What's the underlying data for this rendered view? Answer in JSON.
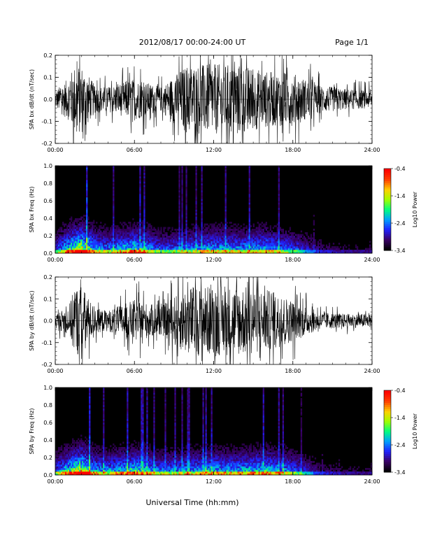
{
  "header": {
    "title": "2012/08/17  00:00-24:00 UT",
    "page": "Page 1/1"
  },
  "x_axis": {
    "title": "Universal Time (hh:mm)",
    "ticks": [
      "00:00",
      "06:00",
      "12:00",
      "18:00",
      "24:00"
    ],
    "range_hours": [
      0,
      24
    ]
  },
  "colorbar": {
    "label": "Log10 Power",
    "ticks": [
      "-0.4",
      "-1.4",
      "-2.4",
      "-3.4"
    ],
    "range": [
      -3.4,
      -0.4
    ],
    "colors": [
      "#000000",
      "#3a0066",
      "#2020ff",
      "#00a0ff",
      "#00ff80",
      "#a0ff00",
      "#ffd000",
      "#ff4000",
      "#ff0000"
    ]
  },
  "chart_data": [
    {
      "type": "line",
      "ylabel": "SPA bx dB/dt (nT/sec)",
      "ylim": [
        -0.2,
        0.2
      ],
      "yticks": [
        "-0.2",
        "-0.1",
        "0.0",
        "0.1",
        "0.2"
      ],
      "series": [
        {
          "x": [
            0,
            1,
            1.5,
            2,
            3,
            4,
            6,
            8,
            10,
            12,
            14,
            16,
            18,
            20,
            22,
            24
          ],
          "values": [
            0.05,
            0.12,
            0.2,
            0.2,
            0.08,
            0.07,
            0.12,
            0.07,
            0.2,
            0.2,
            0.2,
            0.16,
            0.15,
            0.08,
            0.06,
            0.05
          ]
        }
      ]
    },
    {
      "type": "heatmap",
      "ylabel": "SPA bx Freq (Hz)",
      "ylim": [
        0.0,
        1.0
      ],
      "yticks": [
        "0.0",
        "0.2",
        "0.4",
        "0.6",
        "0.8",
        "1.0"
      ],
      "activity": {
        "x": [
          0,
          1,
          2,
          3,
          4,
          6,
          8,
          10,
          12,
          14,
          16,
          18,
          20,
          22,
          24
        ],
        "values": [
          0.3,
          0.6,
          0.9,
          0.5,
          0.4,
          0.6,
          0.35,
          0.4,
          0.5,
          0.45,
          0.5,
          0.35,
          0.15,
          0.1,
          0.1
        ]
      }
    },
    {
      "type": "line",
      "ylabel": "SPA by dB/dt (nT/sec)",
      "ylim": [
        -0.2,
        0.2
      ],
      "yticks": [
        "-0.2",
        "-0.1",
        "0.0",
        "0.1",
        "0.2"
      ],
      "series": [
        {
          "x": [
            0,
            1,
            1.5,
            2,
            3,
            4,
            6,
            8,
            10,
            12,
            14,
            16,
            18,
            20,
            22,
            24
          ],
          "values": [
            0.04,
            0.08,
            0.2,
            0.2,
            0.07,
            0.06,
            0.12,
            0.08,
            0.2,
            0.2,
            0.2,
            0.18,
            0.12,
            0.05,
            0.04,
            0.04
          ]
        }
      ]
    },
    {
      "type": "heatmap",
      "ylabel": "SPA by Freq (Hz)",
      "ylim": [
        0.0,
        1.0
      ],
      "yticks": [
        "0.0",
        "0.2",
        "0.4",
        "0.6",
        "0.8",
        "1.0"
      ],
      "activity": {
        "x": [
          0,
          1,
          2,
          3,
          4,
          6,
          8,
          10,
          12,
          14,
          16,
          18,
          20,
          22,
          24
        ],
        "values": [
          0.35,
          0.6,
          0.9,
          0.5,
          0.45,
          0.6,
          0.4,
          0.45,
          0.5,
          0.5,
          0.55,
          0.4,
          0.15,
          0.1,
          0.1
        ]
      }
    }
  ]
}
